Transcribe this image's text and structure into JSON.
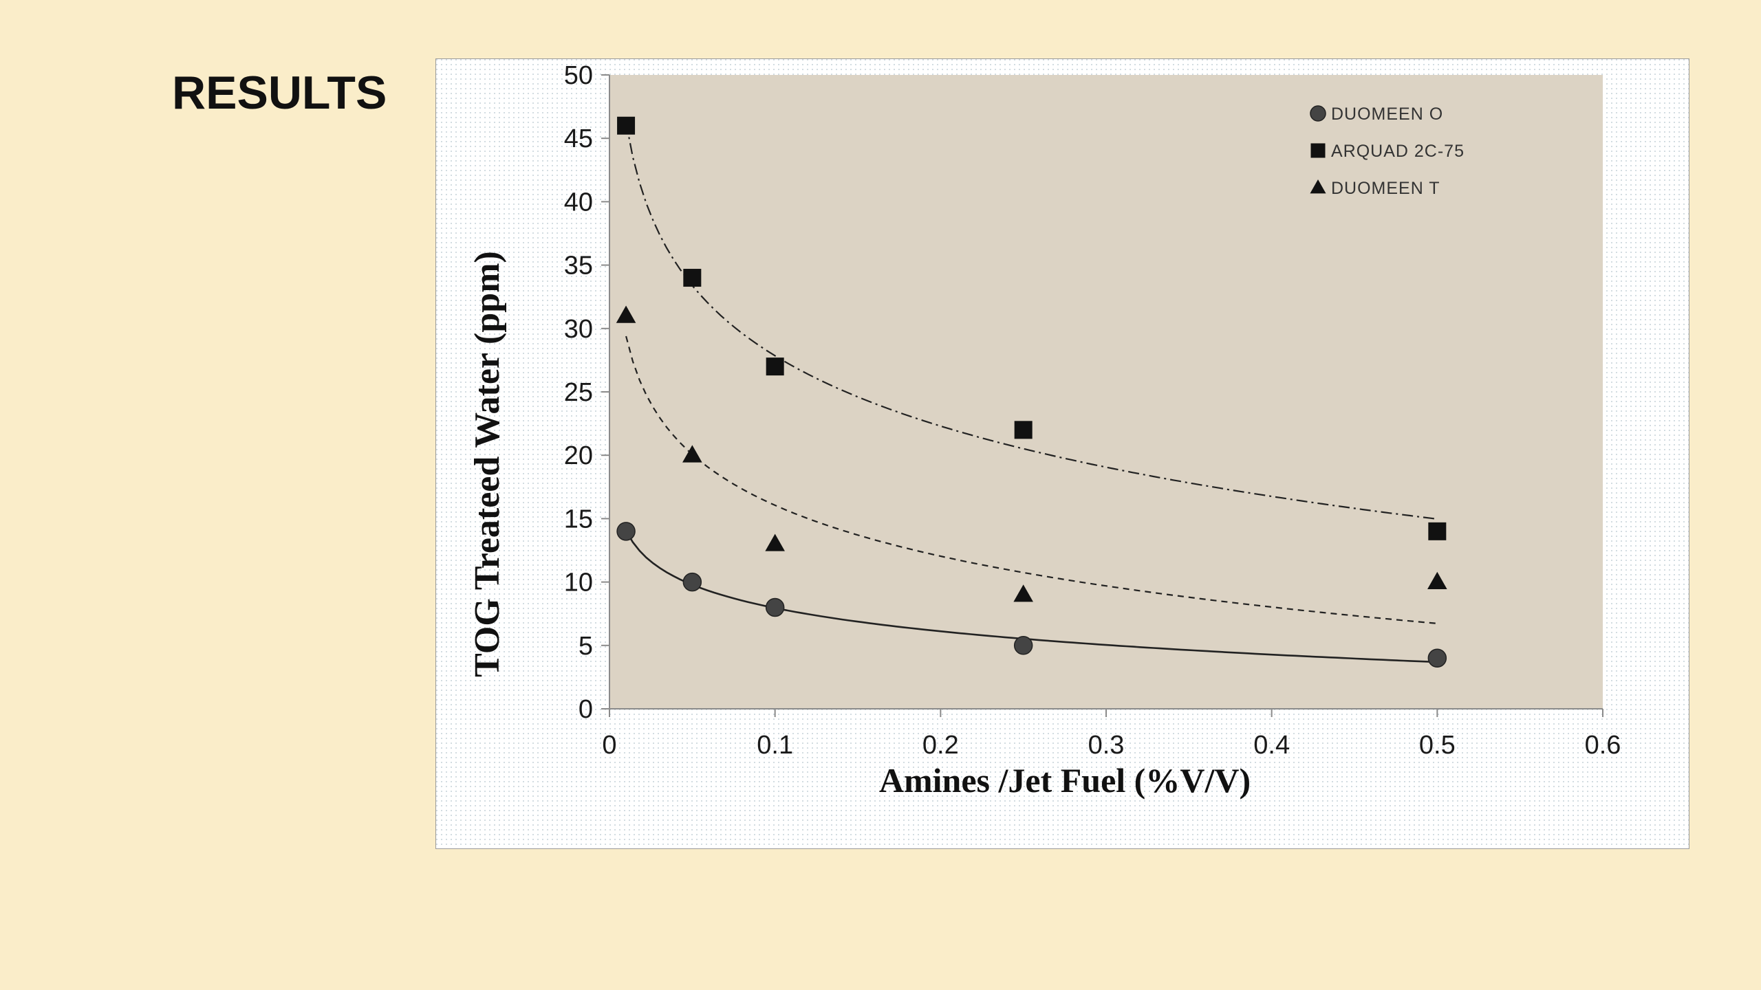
{
  "slide": {
    "title": "RESULTS"
  },
  "colors": {
    "background": "#faedc9",
    "plot_area": "#dcd3c4",
    "marker": "#111111"
  },
  "chart_data": {
    "type": "scatter",
    "title": "",
    "xlabel": "Amines /Jet Fuel (%V/V)",
    "ylabel": "TOG Treateed Water (ppm)",
    "xlim": [
      0,
      0.6
    ],
    "ylim": [
      0,
      50
    ],
    "x_ticks": [
      "0",
      "0.1",
      "0.2",
      "0.3",
      "0.4",
      "0.5",
      "0.6"
    ],
    "y_ticks": [
      "0",
      "5",
      "10",
      "15",
      "20",
      "25",
      "30",
      "35",
      "40",
      "45",
      "50"
    ],
    "legend_position": "top-right",
    "grid": false,
    "series": [
      {
        "name": "DUOMEEN O",
        "marker": "circle",
        "trendline": "solid",
        "x": [
          0.01,
          0.05,
          0.1,
          0.25,
          0.5
        ],
        "y": [
          14,
          10,
          8,
          5,
          4
        ]
      },
      {
        "name": "ARQUAD 2C-75",
        "marker": "square",
        "trendline": "dash-dot",
        "x": [
          0.01,
          0.05,
          0.1,
          0.25,
          0.5
        ],
        "y": [
          46,
          34,
          27,
          22,
          14
        ]
      },
      {
        "name": "DUOMEEN T",
        "marker": "triangle",
        "trendline": "dashed",
        "x": [
          0.01,
          0.05,
          0.1,
          0.25,
          0.5
        ],
        "y": [
          31,
          20,
          13,
          9,
          10
        ]
      }
    ]
  }
}
